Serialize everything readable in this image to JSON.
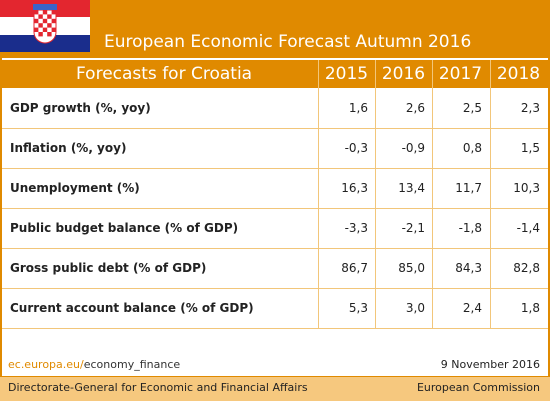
{
  "header": {
    "title": "European Economic Forecast Autumn 2016"
  },
  "table": {
    "caption": "Forecasts for Croatia",
    "columns": [
      "2015",
      "2016",
      "2017",
      "2018"
    ],
    "rows": [
      [
        "GDP growth (%, yoy)",
        "1,6",
        "2,6",
        "2,5",
        "2,3"
      ],
      [
        "Inflation (%, yoy)",
        "-0,3",
        "-0,9",
        "0,8",
        "1,5"
      ],
      [
        "Unemployment (%)",
        "16,3",
        "13,4",
        "11,7",
        "10,3"
      ],
      [
        "Public budget balance (% of GDP)",
        "-3,3",
        "-2,1",
        "-1,8",
        "-1,4"
      ],
      [
        "Gross public debt (% of GDP)",
        "86,7",
        "85,0",
        "84,3",
        "82,8"
      ],
      [
        "Current account balance (% of GDP)",
        "5,3",
        "3,0",
        "2,4",
        "1,8"
      ]
    ]
  },
  "footer": {
    "link_domain": "ec.europa.eu/",
    "link_path": "economy_finance",
    "date": "9 November 2016",
    "department": "Directorate-General for Economic and Financial Affairs",
    "organization": "European Commission"
  }
}
